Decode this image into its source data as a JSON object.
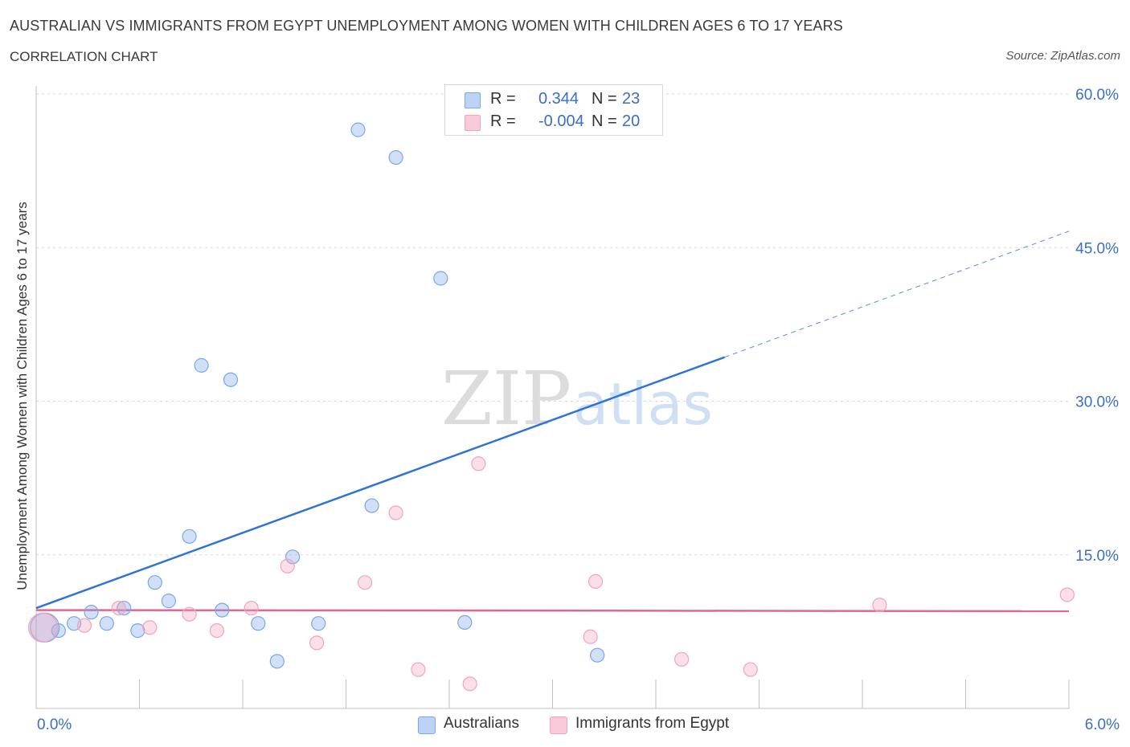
{
  "header": {
    "title": "AUSTRALIAN VS IMMIGRANTS FROM EGYPT UNEMPLOYMENT AMONG WOMEN WITH CHILDREN AGES 6 TO 17 YEARS",
    "subtitle": "CORRELATION CHART",
    "source": "Source: ZipAtlas.com"
  },
  "watermark": {
    "zip": "ZIP",
    "atlas": "atlas"
  },
  "stats_legend": {
    "r_label": "R =",
    "n_label": "N =",
    "rows": [
      {
        "r": "0.344",
        "n": "23"
      },
      {
        "r": "-0.004",
        "n": "20"
      }
    ]
  },
  "chart_data": {
    "type": "scatter",
    "title": "AUSTRALIAN VS IMMIGRANTS FROM EGYPT UNEMPLOYMENT AMONG WOMEN WITH CHILDREN AGES 6 TO 17 YEARS",
    "xlabel": "",
    "ylabel": "Unemployment Among Women with Children Ages 6 to 17 years",
    "xlim": [
      0,
      6.0
    ],
    "ylim": [
      0,
      60
    ],
    "x_tick_labels": [
      "0.0%",
      "6.0%"
    ],
    "y_tick_labels": [
      "15.0%",
      "30.0%",
      "45.0%",
      "60.0%"
    ],
    "y_ticks": [
      15,
      30,
      45,
      60
    ],
    "grid": true,
    "legend_position": "bottom",
    "series": [
      {
        "name": "Australians",
        "color": "#7aa7e8",
        "line_color": "#2f73d4",
        "r": 0.344,
        "n": 23,
        "trend": {
          "x0": 0.0,
          "y0": 9.8,
          "x1": 4.0,
          "y1": 34.3,
          "dashed_to_x": 6.0,
          "dashed_to_y": 46.6
        },
        "points": [
          {
            "x": 0.05,
            "y": 7.9,
            "big": true
          },
          {
            "x": 0.13,
            "y": 7.6
          },
          {
            "x": 0.22,
            "y": 8.3
          },
          {
            "x": 0.32,
            "y": 9.4
          },
          {
            "x": 0.41,
            "y": 8.3
          },
          {
            "x": 0.51,
            "y": 9.8
          },
          {
            "x": 0.59,
            "y": 7.6
          },
          {
            "x": 0.69,
            "y": 12.3
          },
          {
            "x": 0.77,
            "y": 10.5
          },
          {
            "x": 0.89,
            "y": 16.8
          },
          {
            "x": 0.96,
            "y": 33.5
          },
          {
            "x": 1.08,
            "y": 9.6
          },
          {
            "x": 1.13,
            "y": 32.1
          },
          {
            "x": 1.29,
            "y": 8.3
          },
          {
            "x": 1.4,
            "y": 4.6
          },
          {
            "x": 1.49,
            "y": 14.8
          },
          {
            "x": 1.64,
            "y": 8.3
          },
          {
            "x": 1.87,
            "y": 56.5
          },
          {
            "x": 1.95,
            "y": 19.8
          },
          {
            "x": 2.09,
            "y": 53.8
          },
          {
            "x": 2.35,
            "y": 42.0
          },
          {
            "x": 2.49,
            "y": 8.4
          },
          {
            "x": 3.26,
            "y": 5.2
          }
        ]
      },
      {
        "name": "Immigrants from Egypt",
        "color": "#f0a4bd",
        "line_color": "#e46592",
        "r": -0.004,
        "n": 20,
        "trend": {
          "x0": 0.0,
          "y0": 9.6,
          "x1": 6.0,
          "y1": 9.5
        },
        "points": [
          {
            "x": 0.04,
            "y": 7.9,
            "big": true
          },
          {
            "x": 0.28,
            "y": 8.1
          },
          {
            "x": 0.48,
            "y": 9.8
          },
          {
            "x": 0.66,
            "y": 7.9
          },
          {
            "x": 0.89,
            "y": 9.2
          },
          {
            "x": 1.05,
            "y": 7.6
          },
          {
            "x": 1.25,
            "y": 9.8
          },
          {
            "x": 1.46,
            "y": 13.9
          },
          {
            "x": 1.63,
            "y": 6.4
          },
          {
            "x": 1.91,
            "y": 12.3
          },
          {
            "x": 2.09,
            "y": 19.1
          },
          {
            "x": 2.22,
            "y": 3.8
          },
          {
            "x": 2.52,
            "y": 2.4
          },
          {
            "x": 2.57,
            "y": 23.9
          },
          {
            "x": 3.22,
            "y": 7.0
          },
          {
            "x": 3.25,
            "y": 12.4
          },
          {
            "x": 3.75,
            "y": 4.8
          },
          {
            "x": 4.15,
            "y": 3.8
          },
          {
            "x": 4.9,
            "y": 10.1
          },
          {
            "x": 5.99,
            "y": 11.1
          }
        ]
      }
    ]
  }
}
